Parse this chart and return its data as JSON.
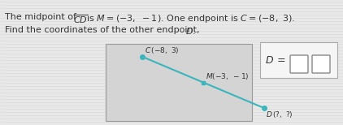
{
  "C": [
    -8,
    3
  ],
  "M": [
    -3,
    -1
  ],
  "D_label": "D (?, ?)",
  "line_color": "#3ab5bc",
  "point_color": "#3ab5bc",
  "fig_bg": "#e8e8e8",
  "diagram_bg": "#d4d4d4",
  "answer_bg": "#f5f5f5",
  "text_color": "#333333",
  "font_size_main": 8.0,
  "font_size_diagram": 6.5,
  "font_size_answer": 9.0,
  "diag_xlim": [
    -11,
    1
  ],
  "diag_ylim": [
    -7,
    5
  ]
}
